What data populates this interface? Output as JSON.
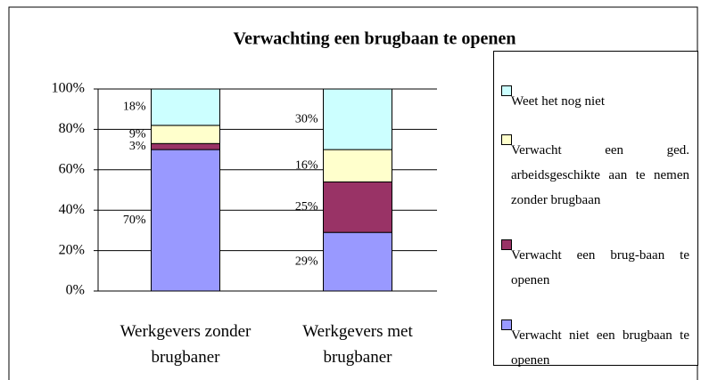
{
  "chart_data": {
    "type": "bar",
    "stacked": true,
    "title": "Verwachting een brugbaan te openen",
    "categories": [
      "Werkgevers zonder brugbaner",
      "Werkgevers met brugbaner"
    ],
    "series": [
      {
        "name": "Verwacht niet een brugbaan te openen",
        "color": "#9999ff",
        "values": [
          70,
          29
        ],
        "value_labels": [
          "70%",
          "29%"
        ]
      },
      {
        "name": "Verwacht een brug-baan te openen",
        "color": "#993366",
        "values": [
          3,
          25
        ],
        "value_labels": [
          "3%",
          "25%"
        ]
      },
      {
        "name": "Verwacht een ged. arbeidsgeschikte aan te nemen zonder brugbaan",
        "color": "#ffffcc",
        "values": [
          9,
          16
        ],
        "value_labels": [
          "9%",
          "16%"
        ]
      },
      {
        "name": "Weet het nog niet",
        "color": "#ccffff",
        "values": [
          18,
          30
        ],
        "value_labels": [
          "18%",
          "30%"
        ]
      }
    ],
    "ylim": [
      0,
      100
    ],
    "yticks": [
      {
        "value": 0,
        "label": "0%"
      },
      {
        "value": 20,
        "label": "20%"
      },
      {
        "value": 40,
        "label": "40%"
      },
      {
        "value": 60,
        "label": "60%"
      },
      {
        "value": 80,
        "label": "80%"
      },
      {
        "value": 100,
        "label": "100%"
      }
    ],
    "grid": true,
    "legend": "right"
  }
}
